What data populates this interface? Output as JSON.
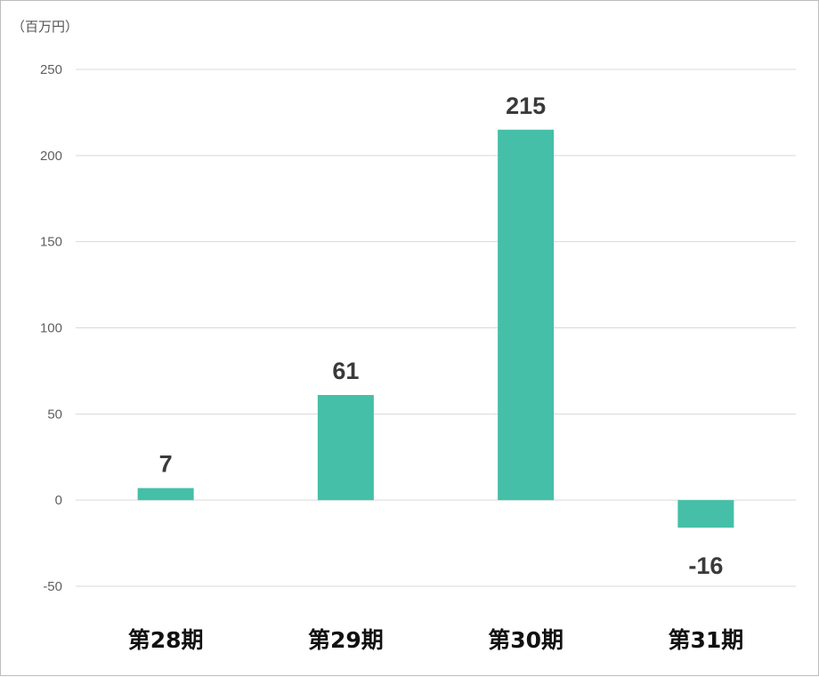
{
  "chart_data": {
    "type": "bar",
    "unit_label": "（百万円）",
    "categories": [
      "第28期",
      "第29期",
      "第30期",
      "第31期"
    ],
    "values": [
      7,
      61,
      215,
      -16
    ],
    "data_labels": [
      "7",
      "61",
      "215",
      "-16"
    ],
    "ylim": [
      -50,
      250
    ],
    "yticks": [
      250,
      200,
      150,
      100,
      50,
      0,
      -50
    ],
    "ytick_labels": [
      "250",
      "200",
      "150",
      "100",
      "50",
      "0",
      "-50"
    ],
    "grid": true,
    "legend": "none",
    "bar_color": "#45bfa8"
  }
}
